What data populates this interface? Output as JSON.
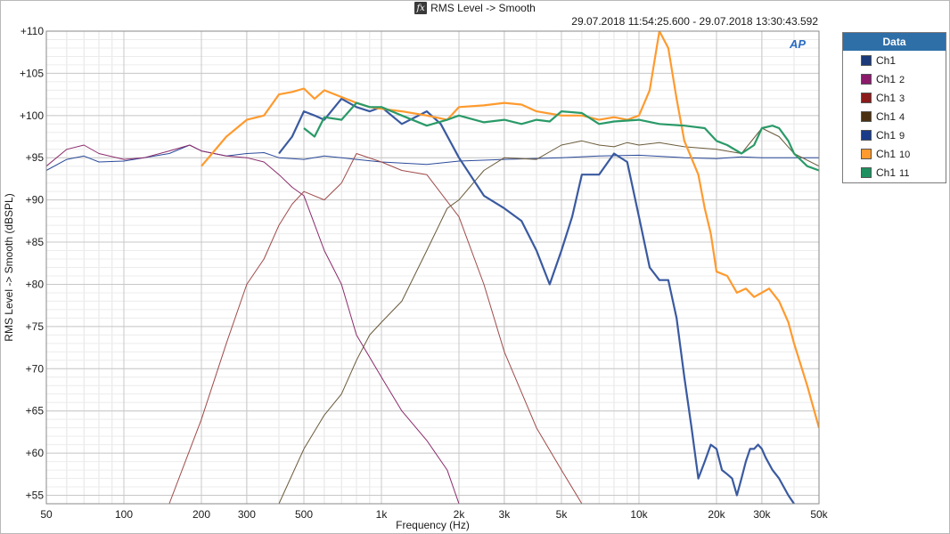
{
  "window": {
    "title": "RMS Level -> Smooth",
    "time_range": "29.07.2018 11:54:25.600 - 29.07.2018 13:30:43.592",
    "logo_text": "AP"
  },
  "legend": {
    "title": "Data",
    "items": [
      {
        "label": "Ch1",
        "num": "",
        "color": "#1a3a7a"
      },
      {
        "label": "Ch1",
        "num": "2",
        "color": "#8b1a6b"
      },
      {
        "label": "Ch1",
        "num": "3",
        "color": "#8b1a1a"
      },
      {
        "label": "Ch1",
        "num": "4",
        "color": "#4a3010"
      },
      {
        "label": "Ch1",
        "num": "9",
        "color": "#1a3a8a"
      },
      {
        "label": "Ch1",
        "num": "10",
        "color": "#ff9a2e"
      },
      {
        "label": "Ch1",
        "num": "11",
        "color": "#1e9060"
      }
    ]
  },
  "chart_data": {
    "type": "line",
    "title": "RMS Level -> Smooth",
    "xlabel": "Frequency (Hz)",
    "ylabel": "RMS Level -> Smooth (dBSPL)",
    "xscale": "log",
    "xlim": [
      50,
      50000
    ],
    "ylim": [
      54,
      110
    ],
    "x_ticks": [
      50,
      100,
      200,
      300,
      500,
      1000,
      2000,
      3000,
      5000,
      10000,
      20000,
      30000,
      50000
    ],
    "x_tick_labels": [
      "50",
      "100",
      "200",
      "300",
      "500",
      "1k",
      "2k",
      "3k",
      "5k",
      "10k",
      "20k",
      "30k",
      "50k"
    ],
    "y_ticks": [
      55,
      60,
      65,
      70,
      75,
      80,
      85,
      90,
      95,
      100,
      105,
      110
    ],
    "y_tick_labels": [
      "+55",
      "+60",
      "+65",
      "+70",
      "+75",
      "+80",
      "+85",
      "+90",
      "+95",
      "+100",
      "+105",
      "+110"
    ],
    "grid": true,
    "series": [
      {
        "name": "Ch1",
        "color": "#2a4a9a",
        "width": 1,
        "x": [
          50,
          60,
          70,
          80,
          100,
          150,
          180,
          200,
          250,
          300,
          350,
          400,
          500,
          600,
          700,
          800,
          1000,
          1500,
          2000,
          3000,
          5000,
          7000,
          10000,
          15000,
          20000,
          25000,
          30000,
          40000,
          50000
        ],
        "y": [
          93.5,
          94.8,
          95.2,
          94.5,
          94.6,
          95.5,
          96.5,
          95.8,
          95.2,
          95.5,
          95.6,
          95.0,
          94.8,
          95.2,
          95.0,
          94.8,
          94.5,
          94.2,
          94.6,
          94.8,
          95.0,
          95.2,
          95.3,
          95.0,
          94.9,
          95.1,
          95.0,
          95.0,
          95.0
        ]
      },
      {
        "name": "Ch1 2",
        "color": "#8b2a6b",
        "width": 1,
        "x": [
          50,
          60,
          70,
          80,
          100,
          120,
          150,
          180,
          200,
          250,
          300,
          350,
          400,
          450,
          500,
          600,
          700,
          800,
          1000,
          1200,
          1500,
          1800,
          2000
        ],
        "y": [
          94.0,
          96.0,
          96.5,
          95.5,
          94.8,
          95.0,
          95.8,
          96.5,
          95.8,
          95.2,
          95.0,
          94.5,
          93.0,
          91.5,
          90.5,
          84.0,
          80.0,
          74.0,
          69.0,
          65.0,
          61.5,
          58.0,
          54.0
        ]
      },
      {
        "name": "Ch1 3",
        "color": "#a04a4a",
        "width": 1,
        "x": [
          150,
          200,
          250,
          300,
          350,
          400,
          450,
          500,
          600,
          700,
          800,
          1000,
          1200,
          1500,
          2000,
          2500,
          3000,
          4000,
          5000,
          6000
        ],
        "y": [
          54.0,
          64.0,
          73.0,
          80.0,
          83.0,
          87.0,
          89.5,
          91.0,
          90.0,
          92.0,
          95.5,
          94.5,
          93.5,
          93.0,
          88.0,
          80.0,
          72.0,
          63.0,
          58.0,
          54.0
        ]
      },
      {
        "name": "Ch1 4",
        "color": "#6a5a3a",
        "width": 1,
        "x": [
          400,
          500,
          600,
          700,
          800,
          900,
          1000,
          1200,
          1500,
          1800,
          2000,
          2500,
          3000,
          4000,
          5000,
          6000,
          7000,
          8000,
          9000,
          10000,
          12000,
          15000,
          20000,
          25000,
          30000,
          35000,
          40000,
          50000
        ],
        "y": [
          54.0,
          60.5,
          64.5,
          67.0,
          71.0,
          74.0,
          75.5,
          78.0,
          84.0,
          89.0,
          90.0,
          93.5,
          95.0,
          94.8,
          96.5,
          97.0,
          96.5,
          96.3,
          96.8,
          96.5,
          96.8,
          96.3,
          96.0,
          95.5,
          98.5,
          97.5,
          95.5,
          94.0
        ]
      },
      {
        "name": "Ch1 9",
        "color": "#3a5aa0",
        "width": 2.2,
        "x": [
          400,
          450,
          500,
          550,
          600,
          700,
          800,
          900,
          1000,
          1200,
          1500,
          1700,
          2000,
          2500,
          3000,
          3500,
          4000,
          4500,
          5000,
          5500,
          6000,
          7000,
          8000,
          9000,
          10000,
          11000,
          12000,
          13000,
          14000,
          15000,
          16000,
          17000,
          18000,
          19000,
          20000,
          21000,
          22000,
          23000,
          24000,
          25000,
          26000,
          27000,
          28000,
          29000,
          30000,
          31000,
          33000,
          35000,
          38000,
          40000
        ],
        "y": [
          95.5,
          97.5,
          100.5,
          100.0,
          99.5,
          102.0,
          101.0,
          100.5,
          101.0,
          99.0,
          100.5,
          99.0,
          95.0,
          90.5,
          89.0,
          87.5,
          84.0,
          80.0,
          84.0,
          88.0,
          93.0,
          93.0,
          95.5,
          94.5,
          88.0,
          82.0,
          80.5,
          80.5,
          76.0,
          69.0,
          63.0,
          57.0,
          59.0,
          61.0,
          60.5,
          58.0,
          57.5,
          57.0,
          55.0,
          57.0,
          59.0,
          60.5,
          60.5,
          61.0,
          60.5,
          59.5,
          58.0,
          57.0,
          55.0,
          54.0
        ]
      },
      {
        "name": "Ch1 10",
        "color": "#ff9a2e",
        "width": 2.2,
        "x": [
          200,
          220,
          250,
          300,
          350,
          400,
          450,
          500,
          550,
          600,
          700,
          800,
          900,
          1000,
          1200,
          1500,
          1800,
          2000,
          2500,
          3000,
          3500,
          4000,
          5000,
          6000,
          7000,
          8000,
          9000,
          10000,
          11000,
          12000,
          13000,
          14000,
          15000,
          17000,
          18000,
          19000,
          20000,
          22000,
          24000,
          26000,
          28000,
          30000,
          32000,
          35000,
          38000,
          40000,
          45000,
          50000
        ],
        "y": [
          94.0,
          95.5,
          97.5,
          99.5,
          100.0,
          102.5,
          102.8,
          103.2,
          102.0,
          103.0,
          102.2,
          101.5,
          101.0,
          100.8,
          100.5,
          100.0,
          99.5,
          101.0,
          101.2,
          101.5,
          101.3,
          100.5,
          100.0,
          100.0,
          99.5,
          99.8,
          99.5,
          100.0,
          103.0,
          110.0,
          108.0,
          102.0,
          97.0,
          93.0,
          89.0,
          86.0,
          81.5,
          81.0,
          79.0,
          79.5,
          78.5,
          79.0,
          79.5,
          78.0,
          75.5,
          73.0,
          68.0,
          63.0
        ]
      },
      {
        "name": "Ch1 11",
        "color": "#2a9a68",
        "width": 2.2,
        "x": [
          500,
          550,
          600,
          700,
          800,
          900,
          1000,
          1200,
          1500,
          1800,
          2000,
          2500,
          3000,
          3500,
          4000,
          4500,
          5000,
          6000,
          7000,
          8000,
          10000,
          12000,
          15000,
          18000,
          20000,
          22000,
          25000,
          28000,
          30000,
          33000,
          35000,
          38000,
          40000,
          45000,
          50000
        ],
        "y": [
          98.5,
          97.5,
          99.8,
          99.5,
          101.5,
          101.0,
          101.0,
          100.0,
          98.8,
          99.5,
          100.0,
          99.2,
          99.5,
          99.0,
          99.5,
          99.3,
          100.5,
          100.3,
          99.0,
          99.3,
          99.5,
          99.0,
          98.8,
          98.5,
          97.0,
          96.5,
          95.5,
          96.5,
          98.5,
          98.8,
          98.5,
          97.0,
          95.5,
          94.0,
          93.5
        ]
      }
    ]
  }
}
